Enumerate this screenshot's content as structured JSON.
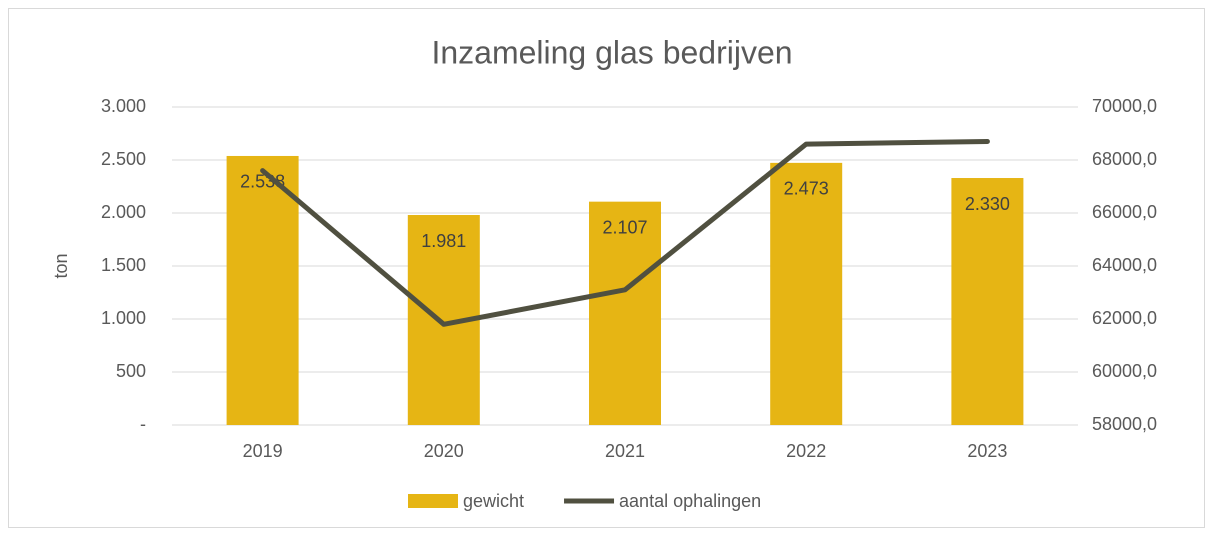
{
  "chart_data": {
    "type": "bar_line",
    "title": "Inzameling glas bedrijven",
    "ylabel": "ton",
    "categories": [
      "2019",
      "2020",
      "2021",
      "2022",
      "2023"
    ],
    "series": [
      {
        "name": "gewicht",
        "type": "bar",
        "color": "#e6b514",
        "values": [
          2538,
          1981,
          2107,
          2473,
          2330
        ],
        "value_labels": [
          "2.538",
          "1.981",
          "2.107",
          "2.473",
          "2.330"
        ]
      },
      {
        "name": "aantal ophalingen",
        "type": "line",
        "axis": "y2",
        "color": "#505040",
        "values": [
          67600,
          61800,
          63100,
          68600,
          68700
        ]
      }
    ],
    "ylim": [
      0,
      3000
    ],
    "yticks": [
      {
        "value": 0,
        "label": "-"
      },
      500,
      {
        "value": 1000,
        "label": "1.000"
      },
      {
        "value": 1500,
        "label": "1.500"
      },
      {
        "value": 2000,
        "label": "2.000"
      },
      {
        "value": 2500,
        "label": "2.500"
      },
      {
        "value": 3000,
        "label": "3.000"
      }
    ],
    "y2lim": [
      58000,
      70000
    ],
    "y2ticks": [
      {
        "value": 58000,
        "label": "58000,0"
      },
      {
        "value": 60000,
        "label": "60000,0"
      },
      {
        "value": 62000,
        "label": "62000,0"
      },
      {
        "value": 64000,
        "label": "64000,0"
      },
      {
        "value": 66000,
        "label": "66000,0"
      },
      {
        "value": 68000,
        "label": "68000,0"
      },
      {
        "value": 70000,
        "label": "70000,0"
      }
    ],
    "grid": true,
    "legend": "bottom"
  }
}
